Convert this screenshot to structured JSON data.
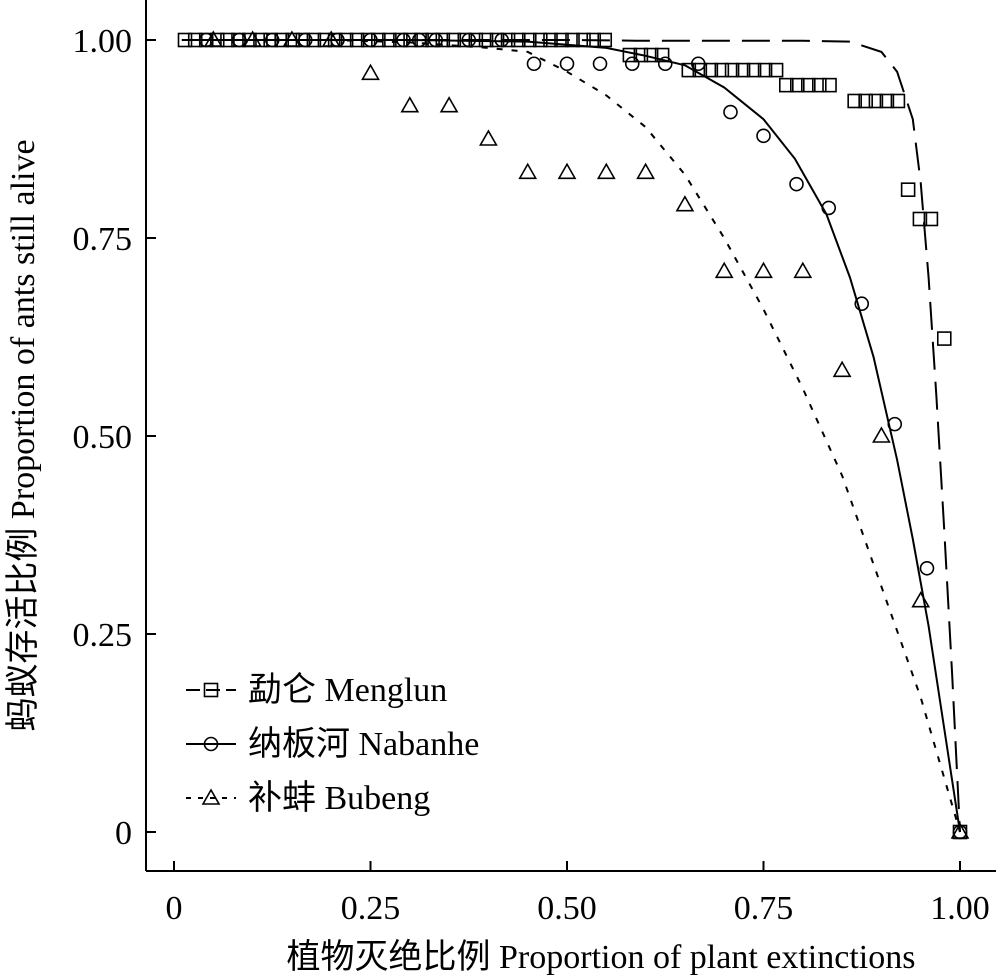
{
  "chart_data": {
    "type": "scatter",
    "xlabel": "植物灭绝比例 Proportion of plant extinctions",
    "ylabel": "蚂蚁存活比例 Proportion of ants still alive",
    "xlim": [
      -0.035,
      1.035
    ],
    "ylim": [
      -0.05,
      1.05
    ],
    "xticks": [
      0,
      0.25,
      0.5,
      0.75,
      1.0
    ],
    "xtick_labels": [
      "0",
      "0.25",
      "0.50",
      "0.75",
      "1.00"
    ],
    "yticks": [
      0,
      0.25,
      0.5,
      0.75,
      1.0
    ],
    "ytick_labels": [
      "0",
      "0.25",
      "0.50",
      "0.75",
      "1.00"
    ],
    "grid": false,
    "legend_position": "bottom-left",
    "series": [
      {
        "name": "勐仑 Menglun",
        "marker": "square",
        "line_style": "long-dash",
        "points": [
          [
            0.014,
            1.0
          ],
          [
            0.027,
            1.0
          ],
          [
            0.041,
            1.0
          ],
          [
            0.055,
            1.0
          ],
          [
            0.068,
            1.0
          ],
          [
            0.082,
            1.0
          ],
          [
            0.096,
            1.0
          ],
          [
            0.11,
            1.0
          ],
          [
            0.123,
            1.0
          ],
          [
            0.137,
            1.0
          ],
          [
            0.151,
            1.0
          ],
          [
            0.164,
            1.0
          ],
          [
            0.178,
            1.0
          ],
          [
            0.192,
            1.0
          ],
          [
            0.205,
            1.0
          ],
          [
            0.219,
            1.0
          ],
          [
            0.233,
            1.0
          ],
          [
            0.247,
            1.0
          ],
          [
            0.26,
            1.0
          ],
          [
            0.274,
            1.0
          ],
          [
            0.288,
            1.0
          ],
          [
            0.301,
            1.0
          ],
          [
            0.315,
            1.0
          ],
          [
            0.329,
            1.0
          ],
          [
            0.342,
            1.0
          ],
          [
            0.356,
            1.0
          ],
          [
            0.37,
            1.0
          ],
          [
            0.384,
            1.0
          ],
          [
            0.397,
            1.0
          ],
          [
            0.411,
            1.0
          ],
          [
            0.425,
            1.0
          ],
          [
            0.438,
            1.0
          ],
          [
            0.452,
            1.0
          ],
          [
            0.466,
            1.0
          ],
          [
            0.479,
            1.0
          ],
          [
            0.493,
            1.0
          ],
          [
            0.507,
            1.0
          ],
          [
            0.521,
            1.0
          ],
          [
            0.534,
            1.0
          ],
          [
            0.548,
            1.0
          ],
          [
            0.58,
            0.981
          ],
          [
            0.594,
            0.981
          ],
          [
            0.607,
            0.981
          ],
          [
            0.621,
            0.981
          ],
          [
            0.655,
            0.962
          ],
          [
            0.669,
            0.962
          ],
          [
            0.683,
            0.962
          ],
          [
            0.697,
            0.962
          ],
          [
            0.71,
            0.962
          ],
          [
            0.724,
            0.962
          ],
          [
            0.738,
            0.962
          ],
          [
            0.752,
            0.962
          ],
          [
            0.766,
            0.962
          ],
          [
            0.779,
            0.943
          ],
          [
            0.793,
            0.943
          ],
          [
            0.807,
            0.943
          ],
          [
            0.821,
            0.943
          ],
          [
            0.834,
            0.943
          ],
          [
            0.866,
            0.923
          ],
          [
            0.88,
            0.923
          ],
          [
            0.893,
            0.923
          ],
          [
            0.907,
            0.923
          ],
          [
            0.921,
            0.923
          ],
          [
            0.934,
            0.811
          ],
          [
            0.949,
            0.774
          ],
          [
            0.963,
            0.774
          ],
          [
            0.98,
            0.623
          ],
          [
            1.0,
            0.0
          ]
        ],
        "curve": [
          [
            0.01,
            1.0
          ],
          [
            0.3,
            1.0
          ],
          [
            0.5,
            1.0
          ],
          [
            0.6,
            0.999
          ],
          [
            0.7,
            0.999
          ],
          [
            0.8,
            0.999
          ],
          [
            0.86,
            0.998
          ],
          [
            0.9,
            0.985
          ],
          [
            0.92,
            0.96
          ],
          [
            0.94,
            0.9
          ],
          [
            0.95,
            0.82
          ],
          [
            0.96,
            0.7
          ],
          [
            0.97,
            0.55
          ],
          [
            0.98,
            0.38
          ],
          [
            0.99,
            0.2
          ],
          [
            1.0,
            0.0
          ]
        ]
      },
      {
        "name": "纳板河 Nabanhe",
        "marker": "circle",
        "line_style": "solid",
        "points": [
          [
            0.041,
            1.0
          ],
          [
            0.083,
            1.0
          ],
          [
            0.125,
            1.0
          ],
          [
            0.167,
            1.0
          ],
          [
            0.208,
            1.0
          ],
          [
            0.25,
            1.0
          ],
          [
            0.292,
            1.0
          ],
          [
            0.312,
            1.0
          ],
          [
            0.333,
            1.0
          ],
          [
            0.375,
            1.0
          ],
          [
            0.417,
            1.0
          ],
          [
            0.458,
            0.97
          ],
          [
            0.5,
            0.97
          ],
          [
            0.542,
            0.97
          ],
          [
            0.583,
            0.97
          ],
          [
            0.625,
            0.97
          ],
          [
            0.667,
            0.97
          ],
          [
            0.708,
            0.909
          ],
          [
            0.75,
            0.879
          ],
          [
            0.792,
            0.818
          ],
          [
            0.833,
            0.788
          ],
          [
            0.875,
            0.667
          ],
          [
            0.917,
            0.515
          ],
          [
            0.958,
            0.333
          ],
          [
            1.0,
            0.0
          ]
        ],
        "curve": [
          [
            0.01,
            1.0
          ],
          [
            0.3,
            1.0
          ],
          [
            0.45,
            0.998
          ],
          [
            0.55,
            0.99
          ],
          [
            0.6,
            0.98
          ],
          [
            0.65,
            0.968
          ],
          [
            0.7,
            0.94
          ],
          [
            0.75,
            0.9
          ],
          [
            0.79,
            0.85
          ],
          [
            0.83,
            0.78
          ],
          [
            0.86,
            0.7
          ],
          [
            0.89,
            0.6
          ],
          [
            0.92,
            0.47
          ],
          [
            0.94,
            0.37
          ],
          [
            0.96,
            0.26
          ],
          [
            0.98,
            0.13
          ],
          [
            1.0,
            0.0
          ]
        ]
      },
      {
        "name": "补蚌 Bubeng",
        "marker": "triangle",
        "line_style": "short-dash",
        "points": [
          [
            0.05,
            1.0
          ],
          [
            0.1,
            1.0
          ],
          [
            0.15,
            1.0
          ],
          [
            0.2,
            1.0
          ],
          [
            0.25,
            0.958
          ],
          [
            0.3,
            0.917
          ],
          [
            0.35,
            0.917
          ],
          [
            0.4,
            0.875
          ],
          [
            0.45,
            0.833
          ],
          [
            0.5,
            0.833
          ],
          [
            0.55,
            0.833
          ],
          [
            0.6,
            0.833
          ],
          [
            0.65,
            0.792
          ],
          [
            0.7,
            0.708
          ],
          [
            0.75,
            0.708
          ],
          [
            0.8,
            0.708
          ],
          [
            0.85,
            0.583
          ],
          [
            0.9,
            0.5
          ],
          [
            0.95,
            0.292
          ],
          [
            1.0,
            0.0
          ]
        ],
        "curve": [
          [
            0.01,
            1.0
          ],
          [
            0.2,
            1.0
          ],
          [
            0.3,
            0.997
          ],
          [
            0.4,
            0.99
          ],
          [
            0.45,
            0.985
          ],
          [
            0.5,
            0.96
          ],
          [
            0.55,
            0.93
          ],
          [
            0.6,
            0.89
          ],
          [
            0.65,
            0.83
          ],
          [
            0.7,
            0.75
          ],
          [
            0.75,
            0.66
          ],
          [
            0.8,
            0.56
          ],
          [
            0.85,
            0.45
          ],
          [
            0.9,
            0.31
          ],
          [
            0.95,
            0.17
          ],
          [
            1.0,
            0.0
          ]
        ]
      }
    ]
  }
}
